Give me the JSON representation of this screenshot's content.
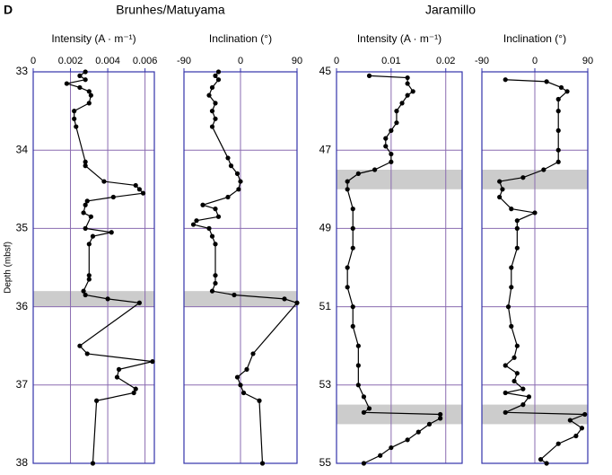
{
  "figure": {
    "label": "D",
    "y_label": "Depth (mbsf)",
    "group_titles": [
      "Brunhes/Matuyama",
      "Jaramillo"
    ]
  },
  "chart_data": [
    {
      "type": "line",
      "x_label": "Intensity (A · m⁻¹)",
      "color": "#000000",
      "grid": true,
      "show_ytick_labels": true,
      "xlim": [
        0,
        0.0065
      ],
      "xticks": [
        0,
        0.002,
        0.004,
        0.006
      ],
      "ylim": [
        33,
        38
      ],
      "yticks": [
        33,
        34,
        35,
        36,
        37,
        38
      ],
      "bands": [
        [
          35.8,
          36.0
        ]
      ],
      "depth": [
        33.0,
        33.05,
        33.1,
        33.15,
        33.2,
        33.25,
        33.3,
        33.4,
        33.5,
        33.6,
        33.7,
        34.15,
        34.2,
        34.4,
        34.45,
        34.5,
        34.55,
        34.6,
        34.65,
        34.7,
        34.8,
        34.85,
        35.0,
        35.05,
        35.1,
        35.2,
        35.6,
        35.65,
        35.8,
        35.85,
        35.9,
        35.95,
        36.5,
        36.6,
        36.7,
        36.8,
        36.9,
        37.05,
        37.1,
        37.2,
        38.0
      ],
      "values": [
        0.0028,
        0.0025,
        0.0028,
        0.0018,
        0.0025,
        0.003,
        0.0031,
        0.003,
        0.0022,
        0.0022,
        0.0023,
        0.0028,
        0.0028,
        0.0038,
        0.0055,
        0.0057,
        0.0059,
        0.0043,
        0.0029,
        0.0028,
        0.0027,
        0.0031,
        0.0028,
        0.0042,
        0.0032,
        0.003,
        0.003,
        0.003,
        0.0027,
        0.0028,
        0.004,
        0.0057,
        0.0025,
        0.0029,
        0.0064,
        0.0046,
        0.0045,
        0.0055,
        0.0054,
        0.0034,
        0.0032
      ]
    },
    {
      "type": "line",
      "x_label": "Inclination (°)",
      "color": "#000000",
      "grid": true,
      "show_ytick_labels": false,
      "xlim": [
        -90,
        90
      ],
      "xticks": [
        -90,
        0,
        90
      ],
      "ylim": [
        33,
        38
      ],
      "yticks": [
        33,
        34,
        35,
        36,
        37,
        38
      ],
      "bands": [
        [
          35.8,
          36.0
        ]
      ],
      "depth": [
        33.0,
        33.05,
        33.1,
        33.2,
        33.3,
        33.4,
        33.5,
        33.6,
        33.7,
        34.1,
        34.2,
        34.3,
        34.4,
        34.5,
        34.6,
        34.7,
        34.75,
        34.85,
        34.9,
        34.95,
        35.0,
        35.1,
        35.2,
        35.6,
        35.7,
        35.8,
        35.85,
        35.9,
        35.95,
        36.6,
        36.8,
        36.9,
        37.0,
        37.1,
        37.2,
        38.0
      ],
      "values": [
        -35,
        -40,
        -35,
        -45,
        -50,
        -40,
        -45,
        -40,
        -45,
        -20,
        -15,
        -5,
        0,
        -3,
        -20,
        -60,
        -40,
        -35,
        -70,
        -75,
        -50,
        -45,
        -40,
        -40,
        -40,
        -45,
        -10,
        70,
        90,
        20,
        10,
        -5,
        0,
        5,
        30,
        35
      ]
    },
    {
      "type": "line",
      "x_label": "Intensity (A · m⁻¹)",
      "color": "#000000",
      "grid": true,
      "show_ytick_labels": true,
      "xlim": [
        0,
        0.023
      ],
      "xticks": [
        0,
        0.01,
        0.02
      ],
      "ylim": [
        45,
        55
      ],
      "yticks": [
        45,
        47,
        49,
        51,
        53,
        55
      ],
      "bands": [
        [
          47.5,
          48.0
        ],
        [
          53.5,
          54.0
        ]
      ],
      "depth": [
        45.1,
        45.15,
        45.3,
        45.5,
        45.6,
        45.8,
        46.0,
        46.3,
        46.5,
        46.7,
        46.9,
        47.1,
        47.3,
        47.5,
        47.6,
        47.8,
        48.0,
        48.5,
        49.0,
        49.5,
        50.0,
        50.5,
        51.0,
        51.5,
        52.0,
        52.5,
        53.0,
        53.3,
        53.6,
        53.7,
        53.75,
        53.85,
        54.0,
        54.2,
        54.4,
        54.6,
        54.8,
        55.0
      ],
      "values": [
        0.006,
        0.013,
        0.013,
        0.014,
        0.013,
        0.012,
        0.011,
        0.011,
        0.01,
        0.009,
        0.009,
        0.01,
        0.01,
        0.007,
        0.004,
        0.002,
        0.002,
        0.003,
        0.003,
        0.003,
        0.002,
        0.002,
        0.003,
        0.003,
        0.004,
        0.004,
        0.004,
        0.005,
        0.006,
        0.005,
        0.019,
        0.019,
        0.017,
        0.015,
        0.013,
        0.01,
        0.008,
        0.005
      ]
    },
    {
      "type": "line",
      "x_label": "Inclination (°)",
      "color": "#000000",
      "grid": true,
      "show_ytick_labels": false,
      "xlim": [
        -90,
        90
      ],
      "xticks": [
        -90,
        0,
        90
      ],
      "ylim": [
        45,
        55
      ],
      "yticks": [
        45,
        47,
        49,
        51,
        53,
        55
      ],
      "bands": [
        [
          47.5,
          48.0
        ],
        [
          53.5,
          54.0
        ]
      ],
      "depth": [
        45.2,
        45.25,
        45.4,
        45.5,
        45.7,
        46.0,
        46.5,
        47.0,
        47.3,
        47.5,
        47.7,
        47.8,
        48.0,
        48.2,
        48.5,
        48.6,
        48.8,
        49.0,
        49.5,
        50.0,
        50.5,
        51.0,
        51.5,
        52.0,
        52.3,
        52.5,
        52.7,
        52.9,
        53.1,
        53.2,
        53.3,
        53.5,
        53.7,
        53.75,
        53.9,
        54.1,
        54.3,
        54.5,
        54.9,
        55.0
      ],
      "values": [
        -50,
        20,
        45,
        55,
        40,
        40,
        40,
        40,
        40,
        15,
        -20,
        -60,
        -55,
        -60,
        -40,
        0,
        -30,
        -30,
        -30,
        -40,
        -40,
        -45,
        -40,
        -30,
        -35,
        -50,
        -30,
        -35,
        -20,
        -50,
        -10,
        -20,
        -50,
        85,
        60,
        80,
        70,
        40,
        10,
        20
      ]
    }
  ]
}
